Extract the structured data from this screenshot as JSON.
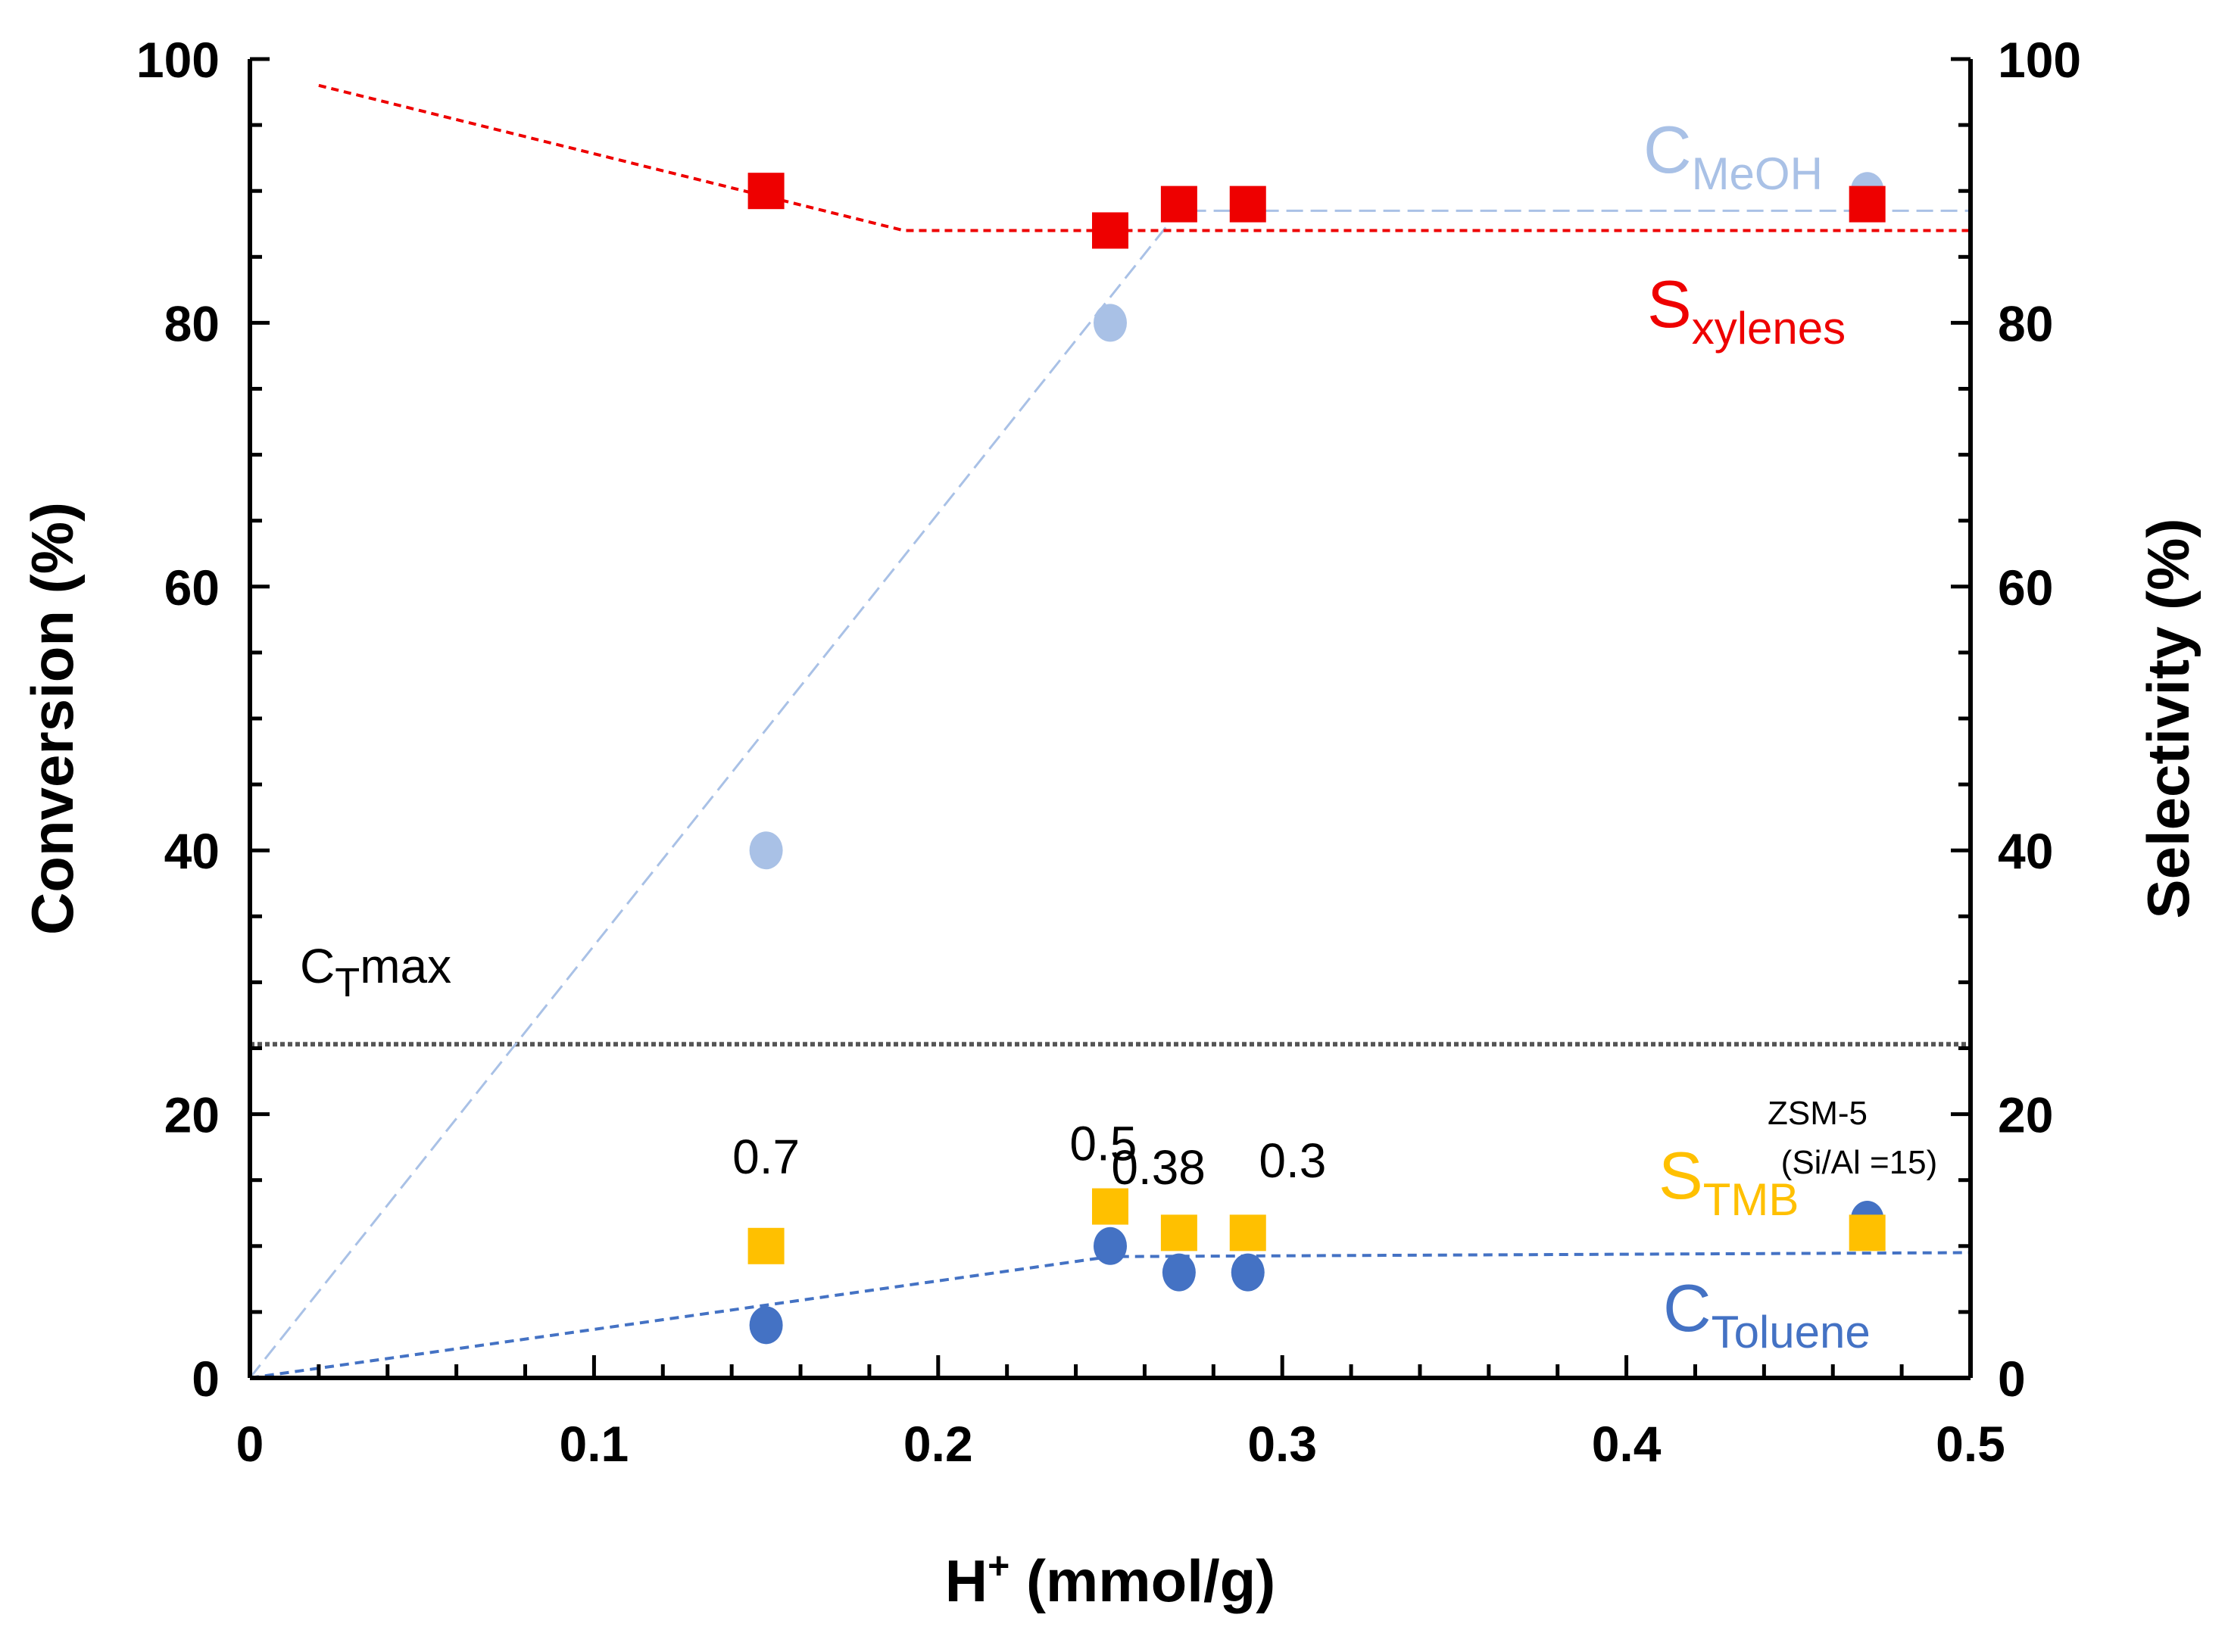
{
  "chart_data": {
    "type": "scatter",
    "title": "",
    "xlabel": "H⁺ (mmol/g)",
    "xlabel_base": "H",
    "xlabel_sup": "+",
    "xlabel_rest": " (mmol/g)",
    "ylabel": "Conversion (%)",
    "y2label": "Selectivity (%)",
    "xlim": [
      0,
      0.5
    ],
    "ylim": [
      0,
      100
    ],
    "y2lim": [
      0,
      100
    ],
    "x_ticks": [
      "0",
      "0.1",
      "0.2",
      "0.3",
      "0.4",
      "0.5"
    ],
    "x_tick_values": [
      0,
      0.1,
      0.2,
      0.3,
      0.4,
      0.5
    ],
    "y_ticks": [
      "0",
      "20",
      "40",
      "60",
      "80",
      "100"
    ],
    "y_tick_values": [
      0,
      20,
      40,
      60,
      80,
      100
    ],
    "series": [
      {
        "name": "C_MeOH",
        "label_main": "C",
        "label_sub": "MeOH",
        "color": "#a9c1e6",
        "marker": "circle",
        "axis": "left",
        "x": [
          0.15,
          0.25,
          0.47
        ],
        "values": [
          40,
          80,
          90
        ],
        "trend": [
          [
            0,
            0
          ],
          [
            0.27,
            88.5
          ],
          [
            0.5,
            88.5
          ]
        ]
      },
      {
        "name": "S_xylenes",
        "label_main": "S",
        "label_sub": "xylenes",
        "color": "#ee0000",
        "marker": "square",
        "axis": "right",
        "x": [
          0.15,
          0.25,
          0.27,
          0.29,
          0.47
        ],
        "values": [
          90,
          87,
          89,
          89,
          89
        ],
        "trend": [
          [
            0.02,
            98
          ],
          [
            0.19,
            87
          ],
          [
            0.5,
            87
          ]
        ]
      },
      {
        "name": "C_Toluene",
        "label_main": "C",
        "label_sub": "Toluene",
        "color": "#4472c4",
        "marker": "circle",
        "axis": "left",
        "x": [
          0.15,
          0.25,
          0.27,
          0.29,
          0.47
        ],
        "values": [
          4,
          10,
          8,
          8,
          12
        ],
        "trend": [
          [
            0,
            0
          ],
          [
            0.25,
            9.2
          ],
          [
            0.5,
            9.5
          ]
        ]
      },
      {
        "name": "S_TMB",
        "label_main": "S",
        "label_sub": "TMB",
        "color": "#ffc000",
        "marker": "square",
        "axis": "right",
        "x": [
          0.15,
          0.25,
          0.27,
          0.29,
          0.47
        ],
        "values": [
          10,
          13,
          11,
          11,
          11
        ]
      }
    ],
    "reference_line": {
      "name": "C_Tmax",
      "label_main": "C",
      "label_sub": "T",
      "label_rest": "max",
      "y": 25.3,
      "color": "#555555"
    },
    "annotations": [
      {
        "text": "0.7",
        "x": 0.15,
        "y": 15.5
      },
      {
        "text": "0.5",
        "x": 0.248,
        "y": 16.5
      },
      {
        "text": "0.38",
        "x": 0.264,
        "y": 14.7
      },
      {
        "text": "0.3",
        "x": 0.303,
        "y": 15.2
      }
    ],
    "zsm_label": {
      "line1": "ZSM-5",
      "line2": "(Si/Al =15)"
    }
  }
}
